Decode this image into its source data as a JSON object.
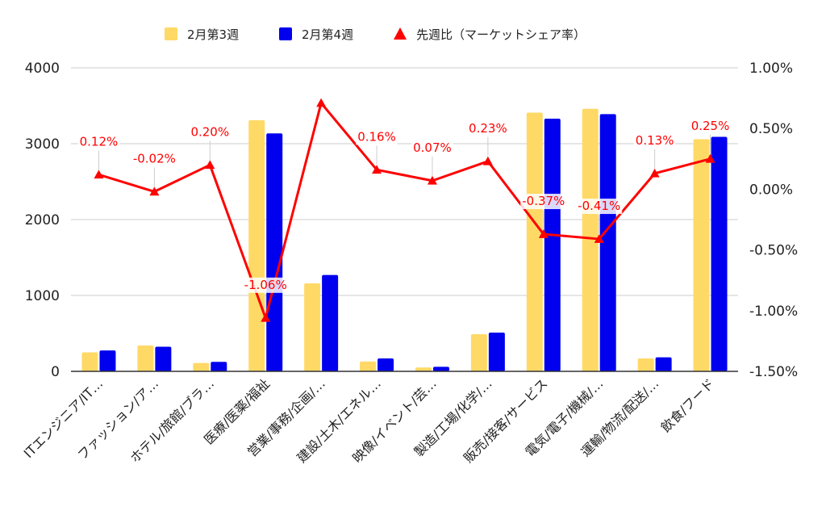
{
  "chart_data": {
    "type": "bar",
    "categories": [
      "ITエンジニア/IT…",
      "ファッション/ア…",
      "ホテル/旅館/ブラ…",
      "医療/医薬/福祉",
      "営業/事務/企画/…",
      "建設/土木/エネル…",
      "映像/イベント/芸…",
      "製造/工場/化学/…",
      "販売/接客/サービス",
      "電気/電子/機械/…",
      "運輸/物流/配送/…",
      "飲食/フード"
    ],
    "series": [
      {
        "name": "2月第3週",
        "type": "bar",
        "axis": "left",
        "color": "#ffd966",
        "values": [
          250,
          340,
          110,
          3310,
          1160,
          130,
          50,
          490,
          3410,
          3460,
          170,
          3060
        ]
      },
      {
        "name": "2月第4週",
        "type": "bar",
        "axis": "left",
        "color": "#0000ee",
        "values": [
          275,
          325,
          125,
          3135,
          1270,
          170,
          60,
          510,
          3330,
          3390,
          185,
          3090
        ]
      },
      {
        "name": "先週比（マーケットシェア率）",
        "type": "line",
        "axis": "right",
        "color": "#ff0000",
        "marker": "triangle",
        "values": [
          0.12,
          -0.02,
          0.2,
          -1.06,
          0.71,
          0.16,
          0.07,
          0.23,
          -0.37,
          -0.41,
          0.13,
          0.25
        ],
        "labels": [
          "0.12%",
          "-0.02%",
          "0.20%",
          "-1.06%",
          "",
          "0.16%",
          "0.07%",
          "0.23%",
          "-0.37%",
          "-0.41%",
          "0.13%",
          "0.25%"
        ]
      }
    ],
    "y_left": {
      "ticks": [
        "0",
        "1000",
        "2000",
        "3000",
        "4000"
      ],
      "range": [
        0,
        4000
      ]
    },
    "y_right": {
      "ticks": [
        "-1.50%",
        "-1.00%",
        "-0.50%",
        "0.00%",
        "0.50%",
        "1.00%"
      ],
      "range": [
        -1.5,
        1.0
      ]
    },
    "legend_position": "top-center",
    "grid": true
  }
}
